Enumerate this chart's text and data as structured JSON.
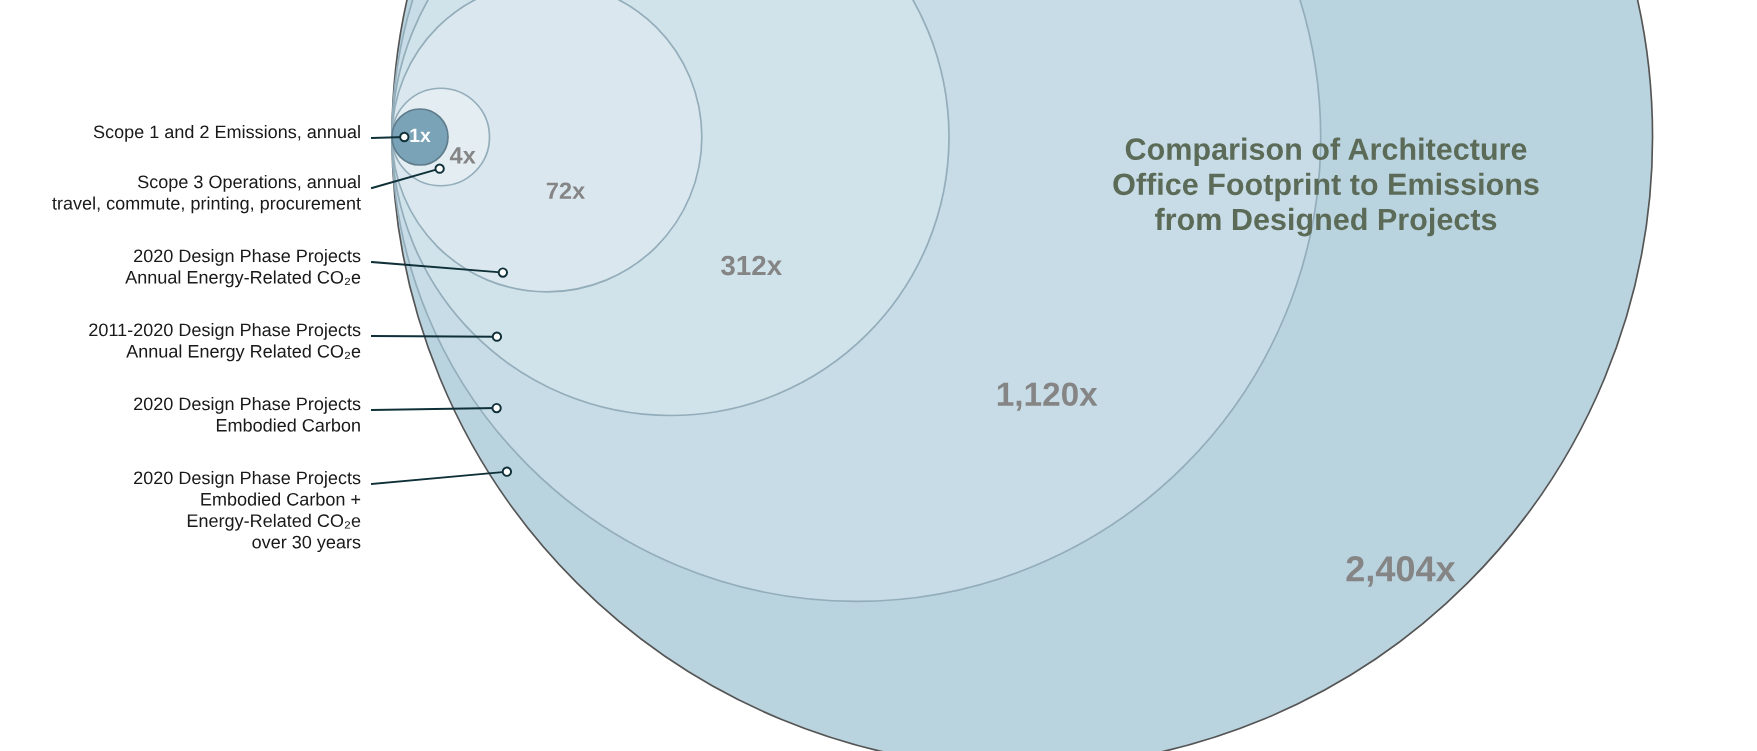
{
  "chart_data": {
    "type": "other",
    "title": "Comparison of Architecture\nOffice Footprint to Emissions\nfrom Designed Projects",
    "categories": [
      "Scope 1 and 2 Emissions, annual",
      "Scope 3 Operations, annual\ntravel, commute, printing, procurement",
      "2020 Design Phase Projects\nAnnual Energy-Related CO₂e",
      "2011-2020 Design Phase Projects\nAnnual Energy Related CO₂e",
      "2020 Design Phase Projects\nEmbodied Carbon",
      "2020 Design Phase Projects\nEmbodied Carbon +\nEnergy-Related CO₂e\nover 30 years"
    ],
    "values": [
      1,
      4,
      72,
      312,
      1120,
      2404
    ],
    "value_labels": [
      "1x",
      "4x",
      "72x",
      "312x",
      "1,120x",
      "2,404x"
    ],
    "colors": [
      "#7aa3b7",
      "#e3edf2",
      "#dae7ee",
      "#d0e2ea",
      "#c7dce6",
      "#b9d3df"
    ]
  }
}
